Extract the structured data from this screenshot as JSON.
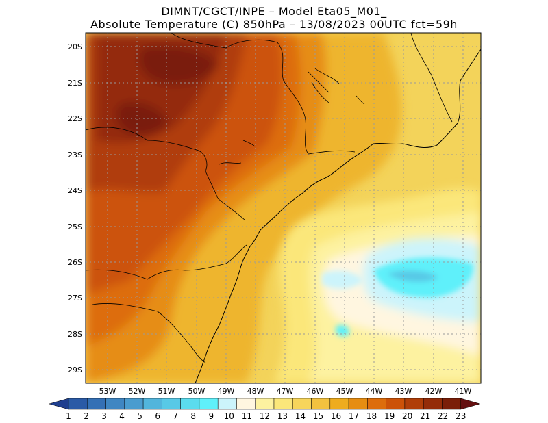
{
  "header": {
    "line1": "DIMNT/CGCT/INPE –  Model Eta05_M01_",
    "line2": "Absolute Temperature (C) 850hPa –  13/08/2023 00UTC fct=59h"
  },
  "map": {
    "lat_labels": [
      "20S",
      "21S",
      "22S",
      "23S",
      "24S",
      "25S",
      "26S",
      "27S",
      "28S",
      "29S"
    ],
    "lon_labels": [
      "53W",
      "52W",
      "51W",
      "50W",
      "49W",
      "48W",
      "47W",
      "46W",
      "45W",
      "44W",
      "43W",
      "42W",
      "41W"
    ],
    "lat_range": [
      -29.6,
      -19.7
    ],
    "lon_range": [
      -53.6,
      -40.8
    ]
  },
  "colorbar": {
    "labels": [
      "1",
      "2",
      "3",
      "4",
      "5",
      "6",
      "7",
      "8",
      "9",
      "10",
      "11",
      "12",
      "13",
      "14",
      "15",
      "16",
      "17",
      "18",
      "19",
      "20",
      "21",
      "22",
      "23"
    ],
    "colors": [
      "#1f3f8f",
      "#2a5aa6",
      "#3470b5",
      "#3f86c2",
      "#4a9ccf",
      "#52b5dc",
      "#58c9e6",
      "#5bdcee",
      "#5ff0fa",
      "#ccf4fb",
      "#fff6e0",
      "#fdf2a0",
      "#fbe77a",
      "#f7d55b",
      "#f3c23f",
      "#eeac1f",
      "#e68d12",
      "#dd6d0c",
      "#cc5208",
      "#b03e08",
      "#942c08",
      "#7a1e08",
      "#651010"
    ]
  }
}
